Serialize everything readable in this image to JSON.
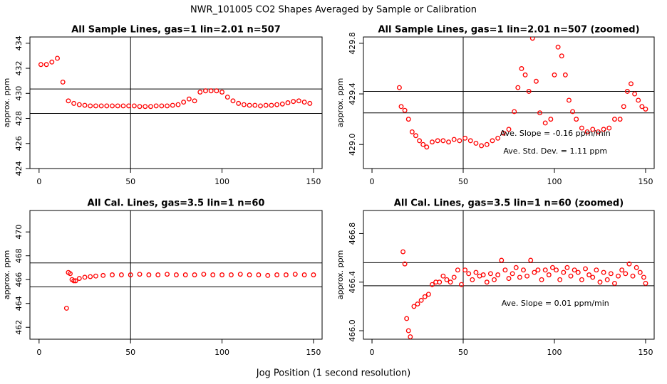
{
  "title": "NWR_101005  CO2 Shapes Averaged by Sample or Calibration",
  "xlabel": "Jog Position (1 second resolution)",
  "chart_data": [
    {
      "type": "scatter",
      "title": "All Sample Lines, gas=1 lin=2.01 n=507",
      "ylabel": "approx. ppm",
      "color": "#ff0000",
      "x": [
        1,
        4,
        7,
        10,
        13,
        16,
        19,
        22,
        25,
        28,
        31,
        34,
        37,
        40,
        43,
        46,
        49,
        52,
        55,
        58,
        61,
        64,
        67,
        70,
        73,
        76,
        79,
        82,
        85,
        88,
        91,
        94,
        97,
        100,
        103,
        106,
        109,
        112,
        115,
        118,
        121,
        124,
        127,
        130,
        133,
        136,
        139,
        142,
        145,
        148
      ],
      "values": [
        432.3,
        432.3,
        432.5,
        432.8,
        430.9,
        429.4,
        429.2,
        429.1,
        429.05,
        429.0,
        429.0,
        429.0,
        429.0,
        429.0,
        429.0,
        429.0,
        429.0,
        429.0,
        428.95,
        428.95,
        428.95,
        429.0,
        429.0,
        429.0,
        429.05,
        429.1,
        429.3,
        429.55,
        429.4,
        430.1,
        430.2,
        430.2,
        430.2,
        430.1,
        429.7,
        429.4,
        429.2,
        429.1,
        429.05,
        429.05,
        429.0,
        429.05,
        429.05,
        429.1,
        429.15,
        429.25,
        429.35,
        429.4,
        429.3,
        429.2
      ],
      "xlim": [
        -5,
        154.7
      ],
      "ylim": [
        424,
        434.5
      ],
      "xticks": [
        0,
        50,
        100,
        150
      ],
      "yticks": [
        424,
        426,
        428,
        430,
        432,
        434
      ],
      "hlines": [
        430.35,
        428.4
      ],
      "vlines": [
        50
      ]
    },
    {
      "type": "scatter",
      "title": "All Sample Lines, gas=1 lin=2.01 n=507 (zoomed)",
      "ylabel": "approx. ppm",
      "color": "#ff0000",
      "x": [
        15,
        16,
        18,
        20,
        22,
        24,
        26,
        28,
        30,
        33,
        36,
        39,
        42,
        45,
        48,
        51,
        54,
        57,
        60,
        63,
        66,
        69,
        72,
        75,
        78,
        80,
        82,
        84,
        86,
        88,
        90,
        92,
        95,
        98,
        100,
        102,
        104,
        106,
        108,
        110,
        112,
        115,
        118,
        121,
        124,
        127,
        130,
        133,
        136,
        138,
        140,
        142,
        144,
        146,
        148,
        150
      ],
      "values": [
        429.45,
        429.3,
        429.27,
        429.2,
        429.1,
        429.07,
        429.03,
        429.0,
        428.98,
        429.02,
        429.03,
        429.03,
        429.02,
        429.04,
        429.03,
        429.05,
        429.03,
        429.01,
        428.99,
        429.0,
        429.03,
        429.05,
        429.09,
        429.12,
        429.26,
        429.45,
        429.6,
        429.55,
        429.42,
        429.84,
        429.5,
        429.25,
        429.17,
        429.2,
        429.55,
        429.77,
        429.7,
        429.55,
        429.35,
        429.26,
        429.2,
        429.13,
        429.1,
        429.12,
        429.1,
        429.12,
        429.13,
        429.2,
        429.2,
        429.3,
        429.42,
        429.48,
        429.4,
        429.35,
        429.3,
        429.28
      ],
      "xlim": [
        -4.7,
        154.7
      ],
      "ylim": [
        428.81,
        429.85
      ],
      "xticks": [
        0,
        50,
        100,
        150
      ],
      "yticks": [
        {
          "value": 429,
          "label": "429.0"
        },
        429.4,
        429.8
      ],
      "hlines": [
        429.42,
        429.25
      ],
      "vlines": [
        50
      ],
      "annotations": [
        "Ave. Slope =  -0.16  ppm/min",
        "Ave. Std. Dev. =  1.11  ppm"
      ]
    },
    {
      "type": "scatter",
      "title": "All Cal. Lines, gas=3.5 lin=1 n=60",
      "ylabel": "approx. ppm",
      "color": "#ff0000",
      "x": [
        15,
        16,
        17,
        18,
        19,
        20,
        22,
        25,
        28,
        31,
        35,
        40,
        45,
        50,
        55,
        60,
        65,
        70,
        75,
        80,
        85,
        90,
        95,
        100,
        105,
        110,
        115,
        120,
        125,
        130,
        135,
        140,
        145,
        150
      ],
      "values": [
        463.6,
        466.6,
        466.5,
        466.0,
        465.9,
        465.9,
        466.1,
        466.2,
        466.25,
        466.3,
        466.35,
        466.4,
        466.4,
        466.4,
        466.45,
        466.4,
        466.4,
        466.45,
        466.4,
        466.4,
        466.4,
        466.45,
        466.4,
        466.4,
        466.4,
        466.45,
        466.4,
        466.4,
        466.35,
        466.4,
        466.4,
        466.45,
        466.4,
        466.4
      ],
      "xlim": [
        -5,
        154.7
      ],
      "ylim": [
        461.0,
        471.8
      ],
      "xticks": [
        0,
        50,
        100,
        150
      ],
      "yticks": [
        462,
        464,
        466,
        468,
        470
      ],
      "hlines": [
        467.4,
        465.4
      ],
      "vlines": [
        50
      ]
    },
    {
      "type": "scatter",
      "title": "All Cal. Lines, gas=3.5 lin=1 n=60 (zoomed)",
      "ylabel": "approx. ppm",
      "color": "#ff0000",
      "x": [
        17,
        18,
        19,
        20,
        21,
        23,
        25,
        27,
        29,
        31,
        33,
        35,
        37,
        39,
        41,
        43,
        45,
        47,
        49,
        51,
        53,
        55,
        57,
        59,
        61,
        63,
        65,
        67,
        69,
        71,
        73,
        75,
        77,
        79,
        81,
        83,
        85,
        87,
        89,
        91,
        93,
        95,
        97,
        99,
        101,
        103,
        105,
        107,
        109,
        111,
        113,
        115,
        117,
        119,
        121,
        123,
        125,
        127,
        129,
        131,
        133,
        135,
        137,
        139,
        141,
        143,
        145,
        147,
        149,
        150
      ],
      "values": [
        466.65,
        466.55,
        466.1,
        466.0,
        465.95,
        466.2,
        466.22,
        466.25,
        466.28,
        466.3,
        466.38,
        466.4,
        466.4,
        466.45,
        466.42,
        466.4,
        466.44,
        466.5,
        466.38,
        466.5,
        466.47,
        466.42,
        466.48,
        466.45,
        466.46,
        466.4,
        466.47,
        466.42,
        466.46,
        466.58,
        466.5,
        466.43,
        466.47,
        466.52,
        466.44,
        466.5,
        466.45,
        466.58,
        466.48,
        466.5,
        466.42,
        466.5,
        466.46,
        466.52,
        466.5,
        466.42,
        466.48,
        466.52,
        466.45,
        466.5,
        466.48,
        466.42,
        466.51,
        466.46,
        466.44,
        466.5,
        466.4,
        466.48,
        466.42,
        466.47,
        466.39,
        466.45,
        466.5,
        466.47,
        466.55,
        466.45,
        466.52,
        466.48,
        466.44,
        466.39
      ],
      "xlim": [
        -4.7,
        154.7
      ],
      "ylim": [
        465.93,
        466.99
      ],
      "xticks": [
        0,
        50,
        100,
        150
      ],
      "yticks": [
        {
          "value": 466,
          "label": "466.0"
        },
        466.4,
        466.8
      ],
      "hlines": [
        466.56,
        466.37
      ],
      "vlines": [
        50
      ],
      "annotations": [
        "Ave. Slope =  0.01  ppm/min"
      ]
    }
  ]
}
